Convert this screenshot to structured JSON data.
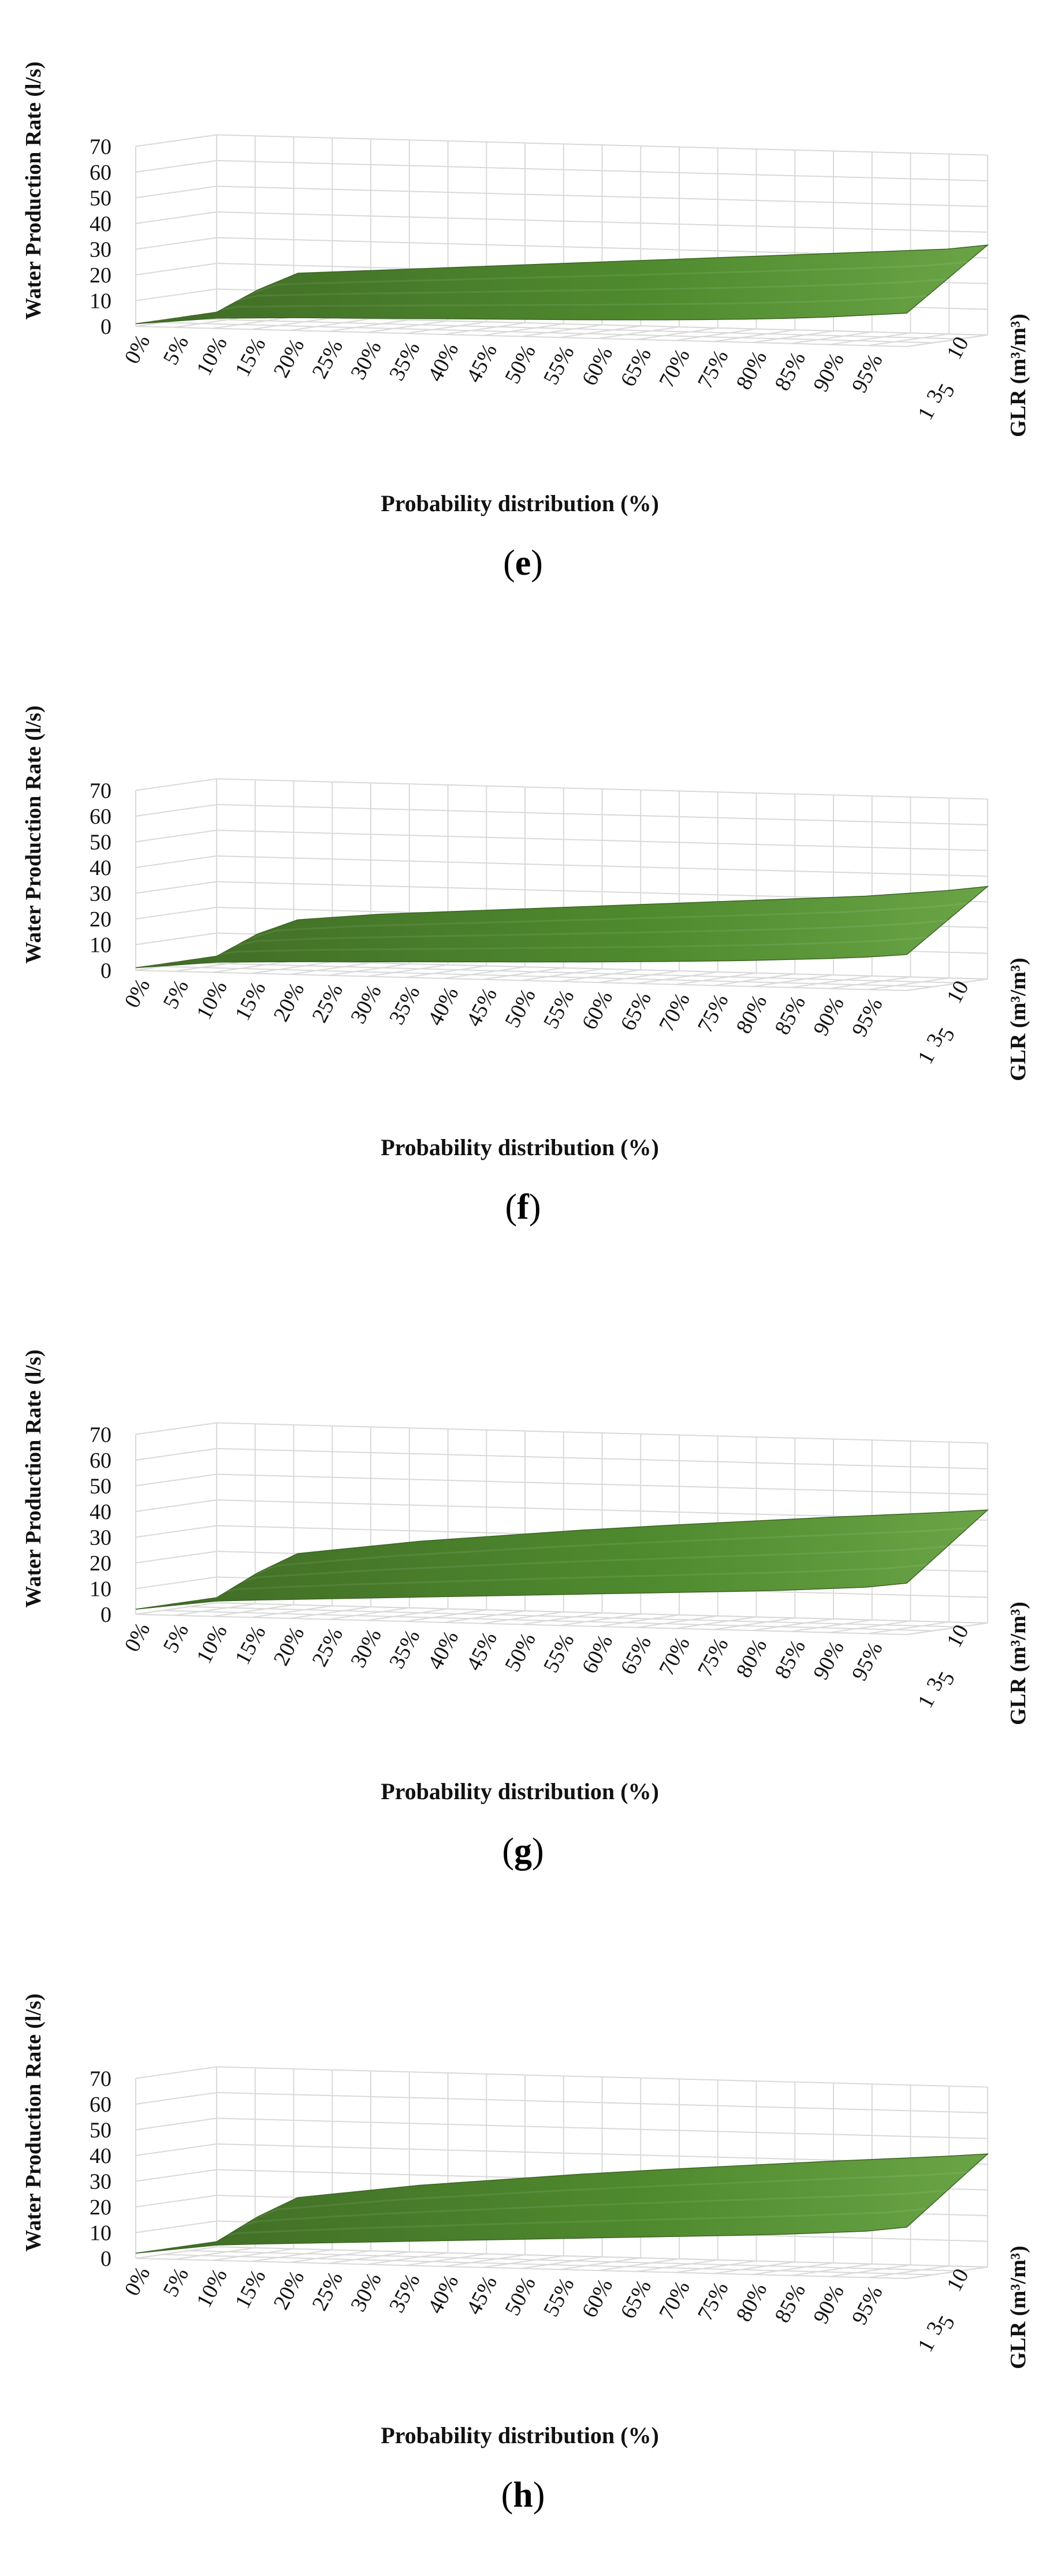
{
  "chart_data": [
    {
      "type": "surface",
      "panel_label": "e",
      "title": "",
      "xlabel": "Probability distribution (%)",
      "ylabel": "Water Production Rate (l/s)",
      "zlabel": "GLR (m³/m³)",
      "categories": [
        "0%",
        "5%",
        "10%",
        "15%",
        "20%",
        "25%",
        "30%",
        "35%",
        "40%",
        "45%",
        "50%",
        "55%",
        "60%",
        "65%",
        "70%",
        "75%",
        "80%",
        "85%",
        "90%",
        "95%"
      ],
      "glr_ticks": [
        "1",
        "3",
        "5",
        "10"
      ],
      "ylim": [
        0,
        70
      ],
      "yticks": [
        0,
        10,
        20,
        30,
        40,
        50,
        60,
        70
      ],
      "series": [
        {
          "name": "front edge",
          "values": [
            1,
            2.5,
            4,
            4.5,
            5,
            5.3,
            5.6,
            5.9,
            6.2,
            6.5,
            6.8,
            7.1,
            7.5,
            7.9,
            8.4,
            9,
            9.7,
            10.6,
            11.8,
            13
          ]
        },
        {
          "name": "back edge",
          "values": [
            1,
            10,
            17,
            18,
            19,
            20,
            21,
            22,
            23,
            24,
            25,
            26,
            27,
            28,
            29,
            30,
            31,
            32,
            33,
            35
          ]
        }
      ]
    },
    {
      "type": "surface",
      "panel_label": "f",
      "title": "",
      "xlabel": "Probability distribution (%)",
      "ylabel": "Water Production Rate (l/s)",
      "zlabel": "GLR (m³/m³)",
      "categories": [
        "0%",
        "5%",
        "10%",
        "15%",
        "20%",
        "25%",
        "30%",
        "35%",
        "40%",
        "45%",
        "50%",
        "55%",
        "60%",
        "65%",
        "70%",
        "75%",
        "80%",
        "85%",
        "90%",
        "95%"
      ],
      "glr_ticks": [
        "1",
        "3",
        "5",
        "10"
      ],
      "ylim": [
        0,
        70
      ],
      "yticks": [
        0,
        10,
        20,
        30,
        40,
        50,
        60,
        70
      ],
      "series": [
        {
          "name": "front edge",
          "values": [
            1,
            2.5,
            4,
            4.5,
            5,
            5.4,
            5.8,
            6.2,
            6.6,
            7,
            7.4,
            7.8,
            8.3,
            8.8,
            9.4,
            10,
            10.8,
            11.6,
            12.6,
            14
          ]
        },
        {
          "name": "back edge",
          "values": [
            1,
            10,
            16,
            17.5,
            19,
            20,
            21,
            22,
            23,
            24,
            25,
            26,
            27,
            28,
            29,
            30,
            31,
            32.5,
            34,
            36
          ]
        }
      ]
    },
    {
      "type": "surface",
      "panel_label": "g",
      "title": "",
      "xlabel": "Probability distribution (%)",
      "ylabel": "Water Production Rate (l/s)",
      "zlabel": "GLR (m³/m³)",
      "categories": [
        "0%",
        "5%",
        "10%",
        "15%",
        "20%",
        "25%",
        "30%",
        "35%",
        "40%",
        "45%",
        "50%",
        "55%",
        "60%",
        "65%",
        "70%",
        "75%",
        "80%",
        "85%",
        "90%",
        "95%"
      ],
      "glr_ticks": [
        "1",
        "3",
        "5",
        "10"
      ],
      "ylim": [
        0,
        70
      ],
      "yticks": [
        0,
        10,
        20,
        30,
        40,
        50,
        60,
        70
      ],
      "series": [
        {
          "name": "front edge",
          "values": [
            2,
            4,
            6,
            6.8,
            7.5,
            8.2,
            8.9,
            9.6,
            10.3,
            11,
            11.7,
            12.4,
            13.1,
            13.8,
            14.5,
            15.2,
            16,
            17,
            18,
            20
          ]
        },
        {
          "name": "back edge",
          "values": [
            2,
            12,
            20,
            22,
            24,
            26,
            27.5,
            29,
            30.5,
            32,
            33.3,
            34.6,
            35.8,
            37,
            38.2,
            39.4,
            40.5,
            41.6,
            42.7,
            44
          ]
        }
      ]
    },
    {
      "type": "surface",
      "panel_label": "h",
      "title": "",
      "xlabel": "Probability distribution (%)",
      "ylabel": "Water Production Rate (l/s)",
      "zlabel": "GLR (m³/m³)",
      "categories": [
        "0%",
        "5%",
        "10%",
        "15%",
        "20%",
        "25%",
        "30%",
        "35%",
        "40%",
        "45%",
        "50%",
        "55%",
        "60%",
        "65%",
        "70%",
        "75%",
        "80%",
        "85%",
        "90%",
        "95%"
      ],
      "glr_ticks": [
        "1",
        "3",
        "5",
        "10"
      ],
      "ylim": [
        0,
        70
      ],
      "yticks": [
        0,
        10,
        20,
        30,
        40,
        50,
        60,
        70
      ],
      "series": [
        {
          "name": "front edge",
          "values": [
            2,
            4,
            6,
            6.8,
            7.5,
            8.2,
            8.9,
            9.6,
            10.3,
            11,
            11.7,
            12.4,
            13.1,
            13.8,
            14.5,
            15.2,
            16,
            17,
            18,
            20
          ]
        },
        {
          "name": "back edge",
          "values": [
            2,
            12,
            20,
            22,
            24,
            26,
            27.5,
            29,
            30.5,
            32,
            33.3,
            34.6,
            35.8,
            37,
            38.2,
            39.4,
            40.5,
            41.6,
            42.7,
            44
          ]
        }
      ]
    }
  ]
}
